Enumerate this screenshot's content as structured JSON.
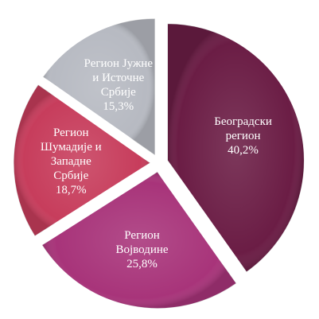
{
  "chart_data": {
    "type": "pie",
    "categories": [
      "Београдски регион",
      "Регион Војводине",
      "Регион Шумадије и Западне Србије",
      "Регион Јужне и Источне Србије"
    ],
    "values": [
      40.2,
      25.8,
      18.7,
      15.3
    ],
    "value_labels": [
      "40,2%",
      "25,8%",
      "18,7%",
      "15,3%"
    ],
    "colors": [
      "#6b1d45",
      "#a8347a",
      "#c73d5c",
      "#b7bac2"
    ]
  }
}
